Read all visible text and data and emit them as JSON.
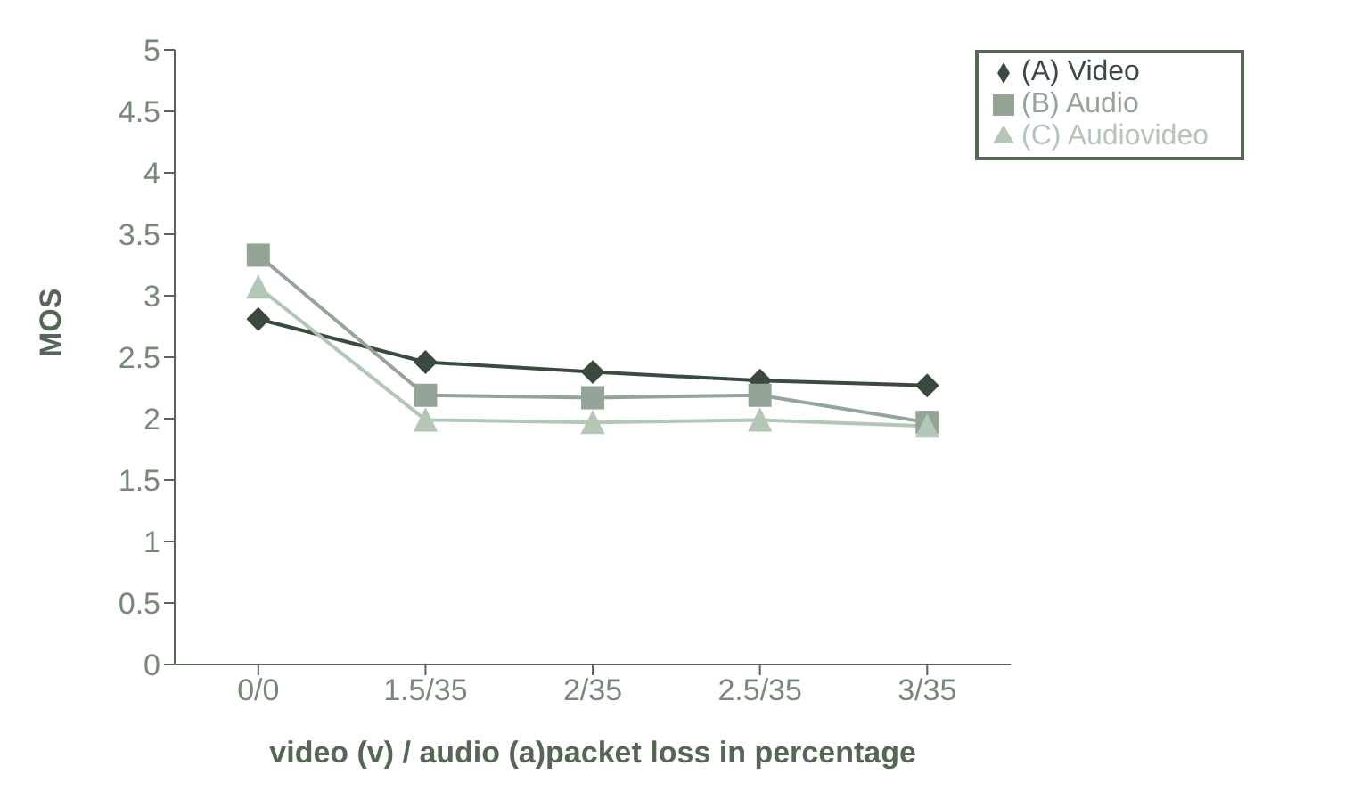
{
  "chart_data": {
    "type": "line",
    "xlabel": "video (v) / audio (a)packet loss in percentage",
    "ylabel": "MOS",
    "categories": [
      "0/0",
      "1.5/35",
      "2/35",
      "2.5/35",
      "3/35"
    ],
    "series": [
      {
        "name": "(A) Video",
        "color": "#3a4a3c",
        "marker": "diamond",
        "values": [
          2.81,
          2.46,
          2.38,
          2.31,
          2.27
        ]
      },
      {
        "name": "(B) Audio",
        "color": "#94a496",
        "marker": "square",
        "values": [
          3.33,
          2.19,
          2.17,
          2.19,
          1.97
        ]
      },
      {
        "name": "(C) Audiovideo",
        "color": "#b4c6b6",
        "marker": "triangle",
        "values": [
          3.07,
          1.99,
          1.97,
          1.99,
          1.94
        ]
      }
    ],
    "ylim": [
      0,
      5
    ],
    "yticks": [
      0,
      0.5,
      1,
      1.5,
      2,
      2.5,
      3,
      3.5,
      4,
      4.5,
      5
    ],
    "grid": false,
    "legend": "top right"
  }
}
